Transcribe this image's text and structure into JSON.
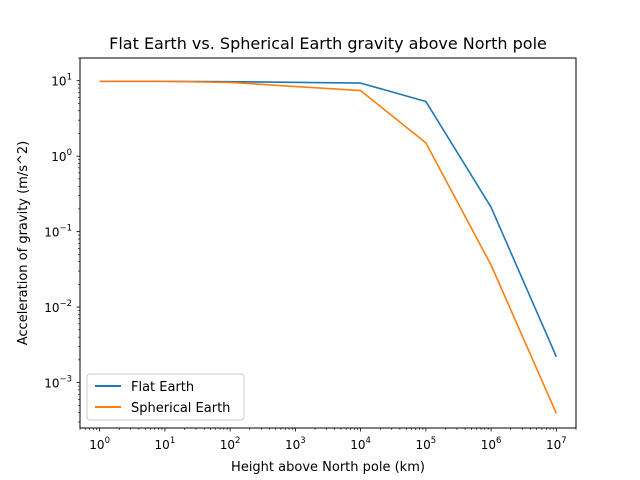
{
  "chart_data": {
    "type": "line",
    "title": "Flat Earth vs. Spherical Earth gravity above North pole",
    "xlabel": "Height above North pole (km)",
    "ylabel": "Acceleration of gravity (m/s^2)",
    "x_scale": "log",
    "y_scale": "log",
    "xlim": [
      0.5,
      20000000
    ],
    "ylim": [
      0.00025,
      20
    ],
    "x": [
      1,
      10,
      100,
      10000,
      100000,
      1000000,
      10000000
    ],
    "x_ticks": [
      {
        "value": 1,
        "base": "10",
        "exp": "0"
      },
      {
        "value": 10,
        "base": "10",
        "exp": "1"
      },
      {
        "value": 100,
        "base": "10",
        "exp": "2"
      },
      {
        "value": 1000,
        "base": "10",
        "exp": "3"
      },
      {
        "value": 10000,
        "base": "10",
        "exp": "4"
      },
      {
        "value": 100000,
        "base": "10",
        "exp": "5"
      },
      {
        "value": 1000000,
        "base": "10",
        "exp": "6"
      },
      {
        "value": 10000000,
        "base": "10",
        "exp": "7"
      }
    ],
    "y_ticks": [
      {
        "value": 0.001,
        "base": "10",
        "exp": "−3"
      },
      {
        "value": 0.01,
        "base": "10",
        "exp": "−2"
      },
      {
        "value": 0.1,
        "base": "10",
        "exp": "−1"
      },
      {
        "value": 1,
        "base": "10",
        "exp": "0"
      },
      {
        "value": 10,
        "base": "10",
        "exp": "1"
      }
    ],
    "series": [
      {
        "name": "Flat Earth",
        "color": "#1f77b4",
        "values": [
          9.8,
          9.8,
          9.7,
          9.3,
          5.3,
          0.21,
          0.0022
        ]
      },
      {
        "name": "Spherical Earth",
        "color": "#ff7f0e",
        "values": [
          9.8,
          9.8,
          9.5,
          7.4,
          1.5,
          0.036,
          0.00039
        ]
      }
    ],
    "legend_position": "lower-left",
    "grid": false
  }
}
